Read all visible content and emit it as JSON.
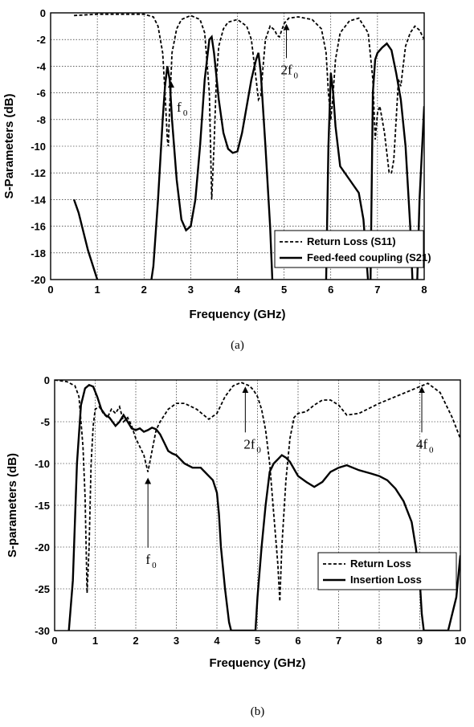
{
  "chart_data": [
    {
      "type": "line",
      "caption": "(a)",
      "xlabel": "Frequency (GHz)",
      "ylabel": "S-Parameters (dB)",
      "xlim": [
        0,
        8
      ],
      "ylim": [
        -20,
        0
      ],
      "xticks": [
        0,
        1,
        2,
        3,
        4,
        5,
        6,
        7,
        8
      ],
      "yticks": [
        0,
        -2,
        -4,
        -6,
        -8,
        -10,
        -12,
        -14,
        -16,
        -18,
        -20
      ],
      "grid": true,
      "legend_position": "bottom-right",
      "series": [
        {
          "name": "Return Loss (S11)",
          "style": "dashed",
          "x": [
            0.5,
            1.0,
            1.5,
            2.0,
            2.2,
            2.3,
            2.4,
            2.45,
            2.5,
            2.52,
            2.55,
            2.6,
            2.7,
            2.8,
            3.0,
            3.2,
            3.3,
            3.4,
            3.45,
            3.5,
            3.55,
            3.6,
            3.7,
            3.8,
            4.0,
            4.2,
            4.3,
            4.4,
            4.45,
            4.5,
            4.55,
            4.6,
            4.7,
            4.8,
            4.85,
            4.9,
            4.95,
            5.0,
            5.1,
            5.3,
            5.6,
            5.8,
            5.9,
            5.95,
            6.0,
            6.05,
            6.1,
            6.2,
            6.4,
            6.6,
            6.8,
            6.9,
            6.95,
            7.0,
            7.05,
            7.1,
            7.15,
            7.2,
            7.25,
            7.3,
            7.35,
            7.4,
            7.45,
            7.5,
            7.55,
            7.6,
            7.7,
            7.8,
            7.9,
            8.0
          ],
          "y": [
            -0.2,
            -0.1,
            -0.1,
            -0.1,
            -0.3,
            -1.0,
            -3.0,
            -6.0,
            -9.5,
            -10.0,
            -7.0,
            -3.0,
            -1.2,
            -0.5,
            -0.2,
            -0.5,
            -1.5,
            -6.0,
            -14.0,
            -10.0,
            -5.0,
            -2.5,
            -1.2,
            -0.7,
            -0.5,
            -1.0,
            -2.0,
            -5.0,
            -6.5,
            -6.2,
            -4.0,
            -2.0,
            -1.0,
            -1.3,
            -1.7,
            -1.8,
            -1.3,
            -0.8,
            -0.4,
            -0.3,
            -0.5,
            -1.2,
            -3.0,
            -6.0,
            -8.0,
            -6.0,
            -3.5,
            -1.5,
            -0.6,
            -0.4,
            -1.5,
            -5.0,
            -9.5,
            -7.5,
            -7.0,
            -8.0,
            -9.0,
            -10.5,
            -12.0,
            -12.0,
            -11.0,
            -8.0,
            -5.0,
            -5.5,
            -4.0,
            -2.5,
            -1.5,
            -1.0,
            -1.3,
            -2.0
          ]
        },
        {
          "name": "Feed-feed coupling (S21)",
          "style": "solid",
          "x": [
            0.5,
            0.6,
            0.8,
            1.0,
            1.05,
            2.15,
            2.2,
            2.3,
            2.4,
            2.45,
            2.5,
            2.55,
            2.6,
            2.7,
            2.8,
            2.9,
            3.0,
            3.1,
            3.2,
            3.3,
            3.4,
            3.45,
            3.5,
            3.6,
            3.7,
            3.8,
            3.9,
            4.0,
            4.1,
            4.2,
            4.3,
            4.4,
            4.45,
            4.5,
            4.6,
            4.7,
            4.75,
            5.9,
            5.95,
            6.0,
            6.05,
            6.1,
            6.2,
            6.4,
            6.6,
            6.7,
            6.8,
            6.85,
            6.9,
            6.95,
            7.0,
            7.1,
            7.2,
            7.3,
            7.4,
            7.5,
            7.6,
            7.7,
            7.75,
            7.85,
            7.9,
            8.0
          ],
          "y": [
            -14.0,
            -15.0,
            -17.8,
            -20.0,
            -20.2,
            -20.2,
            -19.0,
            -14.0,
            -8.0,
            -5.5,
            -4.0,
            -5.0,
            -8.0,
            -12.5,
            -15.5,
            -16.3,
            -16.0,
            -14.0,
            -10.0,
            -5.0,
            -2.0,
            -1.8,
            -3.0,
            -6.5,
            -9.0,
            -10.2,
            -10.5,
            -10.4,
            -9.0,
            -7.0,
            -5.0,
            -3.5,
            -3.0,
            -4.5,
            -10.0,
            -16.0,
            -20.2,
            -20.2,
            -10.0,
            -4.5,
            -6.0,
            -8.5,
            -11.5,
            -12.5,
            -13.5,
            -15.5,
            -20.2,
            -20.2,
            -6.0,
            -3.5,
            -3.0,
            -2.6,
            -2.3,
            -2.8,
            -4.5,
            -6.5,
            -10.0,
            -16.0,
            -20.2,
            -20.2,
            -14.0,
            -7.0
          ]
        }
      ],
      "annotations": [
        {
          "label": "f",
          "sub": "0",
          "x": 2.75,
          "y": -7.4
        },
        {
          "label": "2f",
          "sub": "0",
          "x": 5.05,
          "y": -4.6
        }
      ]
    },
    {
      "type": "line",
      "caption": "(b)",
      "xlabel": "Frequency (GHz)",
      "ylabel": "S-parameters (dB)",
      "xlim": [
        0,
        10
      ],
      "ylim": [
        -30,
        0
      ],
      "xticks": [
        0,
        1,
        2,
        3,
        4,
        5,
        6,
        7,
        8,
        9,
        10
      ],
      "yticks": [
        0,
        -5,
        -10,
        -15,
        -20,
        -25,
        -30
      ],
      "grid": true,
      "legend_position": "bottom-right",
      "series": [
        {
          "name": "Return Loss",
          "style": "dashed",
          "x": [
            0.0,
            0.3,
            0.5,
            0.6,
            0.7,
            0.75,
            0.8,
            0.85,
            0.9,
            0.95,
            1.0,
            1.1,
            1.2,
            1.3,
            1.4,
            1.5,
            1.6,
            1.7,
            1.8,
            1.9,
            2.0,
            2.1,
            2.2,
            2.3,
            2.4,
            2.5,
            2.6,
            2.8,
            3.0,
            3.2,
            3.5,
            3.8,
            4.0,
            4.2,
            4.4,
            4.6,
            4.8,
            4.9,
            5.0,
            5.1,
            5.2,
            5.3,
            5.4,
            5.5,
            5.55,
            5.6,
            5.7,
            5.8,
            5.9,
            6.0,
            6.2,
            6.4,
            6.6,
            6.8,
            7.0,
            7.2,
            7.5,
            8.0,
            8.5,
            9.0,
            9.2,
            9.5,
            9.8,
            10.0
          ],
          "y": [
            0.0,
            -0.2,
            -0.7,
            -2.0,
            -8.0,
            -14.0,
            -25.5,
            -20.0,
            -10.0,
            -5.5,
            -3.5,
            -3.2,
            -4.0,
            -4.5,
            -3.5,
            -4.0,
            -3.2,
            -5.0,
            -4.5,
            -5.5,
            -7.0,
            -8.0,
            -9.0,
            -11.0,
            -8.5,
            -6.0,
            -5.0,
            -3.5,
            -2.8,
            -2.8,
            -3.5,
            -4.7,
            -4.0,
            -2.0,
            -0.7,
            -0.3,
            -0.7,
            -1.2,
            -2.0,
            -3.5,
            -6.0,
            -10.0,
            -16.0,
            -22.0,
            -26.5,
            -20.0,
            -12.0,
            -7.0,
            -4.5,
            -4.0,
            -3.8,
            -3.0,
            -2.4,
            -2.4,
            -3.0,
            -4.2,
            -4.0,
            -2.8,
            -1.8,
            -0.8,
            -0.4,
            -1.5,
            -4.5,
            -7.0
          ]
        },
        {
          "name": "Insertion Loss",
          "style": "solid",
          "x": [
            0.35,
            0.45,
            0.55,
            0.65,
            0.75,
            0.85,
            0.95,
            1.05,
            1.15,
            1.25,
            1.35,
            1.5,
            1.6,
            1.7,
            1.8,
            1.9,
            2.0,
            2.1,
            2.2,
            2.3,
            2.4,
            2.5,
            2.6,
            2.7,
            2.8,
            2.9,
            3.0,
            3.2,
            3.4,
            3.6,
            3.8,
            3.9,
            4.0,
            4.05,
            4.1,
            4.2,
            4.3,
            4.35,
            4.95,
            5.0,
            5.1,
            5.2,
            5.3,
            5.4,
            5.5,
            5.6,
            5.7,
            5.8,
            6.0,
            6.2,
            6.4,
            6.6,
            6.8,
            7.0,
            7.2,
            7.5,
            7.8,
            8.0,
            8.2,
            8.4,
            8.6,
            8.8,
            8.9,
            9.0,
            9.05,
            9.1,
            9.7,
            9.8,
            9.9,
            10.0
          ],
          "y": [
            -30.0,
            -24.0,
            -10.0,
            -3.0,
            -1.0,
            -0.6,
            -0.8,
            -2.0,
            -3.5,
            -4.2,
            -4.5,
            -5.5,
            -5.0,
            -4.2,
            -5.0,
            -5.8,
            -6.0,
            -5.8,
            -6.2,
            -6.0,
            -5.7,
            -5.9,
            -6.5,
            -7.5,
            -8.5,
            -8.8,
            -9.0,
            -10.0,
            -10.5,
            -10.5,
            -11.5,
            -12.0,
            -13.5,
            -16.0,
            -20.0,
            -25.0,
            -29.0,
            -30.0,
            -30.0,
            -26.0,
            -20.0,
            -15.0,
            -11.0,
            -10.0,
            -9.5,
            -9.0,
            -9.3,
            -9.8,
            -11.5,
            -12.2,
            -12.8,
            -12.2,
            -11.0,
            -10.5,
            -10.2,
            -10.8,
            -11.2,
            -11.5,
            -12.0,
            -13.0,
            -14.5,
            -17.0,
            -20.0,
            -24.0,
            -28.0,
            -30.0,
            -30.0,
            -28.0,
            -26.0,
            -21.0
          ]
        }
      ],
      "annotations": [
        {
          "label": "2f",
          "sub": "0",
          "x": 4.8,
          "y": -8.2
        },
        {
          "label": "4f",
          "sub": "0",
          "x": 9.05,
          "y": -8.2
        },
        {
          "label": "f",
          "sub": "0",
          "x": 2.3,
          "y": -22.0
        }
      ]
    }
  ]
}
